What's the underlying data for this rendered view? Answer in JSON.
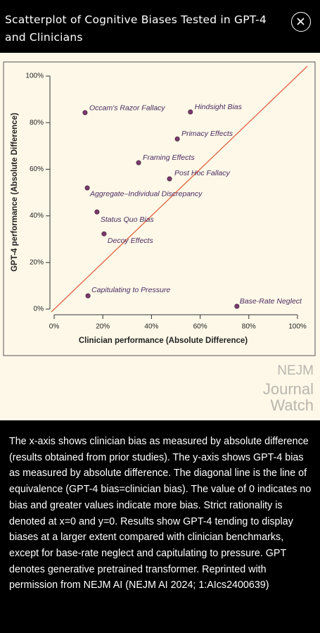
{
  "header": {
    "title": "Scatterplot of Cognitive Biases Tested in GPT-4 and Clinicians"
  },
  "chart_data": {
    "type": "scatter",
    "xlabel": "Clinician performance (Absolute Difference)",
    "ylabel": "GPT-4 performance (Absolute Difference)",
    "xlim": [
      0,
      100
    ],
    "ylim": [
      0,
      100
    ],
    "xticks": [
      {
        "value": 0,
        "label": "0%"
      },
      {
        "value": 20,
        "label": "20%"
      },
      {
        "value": 40,
        "label": "40%"
      },
      {
        "value": 60,
        "label": "60%"
      },
      {
        "value": 80,
        "label": "80%"
      },
      {
        "value": 100,
        "label": "100%"
      }
    ],
    "yticks": [
      {
        "value": 0,
        "label": "0%"
      },
      {
        "value": 20,
        "label": "20%"
      },
      {
        "value": 40,
        "label": "40%"
      },
      {
        "value": 60,
        "label": "60%"
      },
      {
        "value": 80,
        "label": "80%"
      },
      {
        "value": 100,
        "label": "100%"
      }
    ],
    "point_labels": [
      "Occam's Razor Fallacy",
      "Hindsight Bias",
      "Primacy Effects",
      "Framing Effects",
      "Post Hoc Fallacy",
      "Aggregate–Individual Discrepancy",
      "Status Quo Bias",
      "Decoy Effects",
      "Capitulating to Pressure",
      "Base-Rate Neglect"
    ],
    "x": [
      12.7,
      56,
      50.6,
      34.7,
      47.4,
      13.6,
      17.6,
      20.5,
      13.9,
      75.1
    ],
    "values": [
      84.3,
      84.6,
      73,
      62.8,
      55.9,
      52,
      41.7,
      32.3,
      5.7,
      1.2
    ],
    "color": "#7a3a6c",
    "diagonal_line": true,
    "line_color": "#e0613f"
  },
  "watermark": {
    "line1": "NEJM",
    "line2": "Journal",
    "line3": "Watch"
  },
  "caption": "The x-axis shows clinician bias as measured by absolute difference (results obtained from prior studies). The y-axis shows GPT-4 bias as measured by absolute difference. The diagonal line is the line of equivalence (GPT-4 bias=clinician bias). The value of 0 indicates no bias and greater values indicate more bias. Strict rationality is denoted at x=0 and y=0. Results show GPT-4 tending to display biases at a larger extent compared with clinician benchmarks, except for base-rate neglect and capitulating to pressure. GPT denotes generative pretrained transformer. Reprinted with permission from NEJM AI (NEJM AI 2024; 1:AIcs2400639)"
}
